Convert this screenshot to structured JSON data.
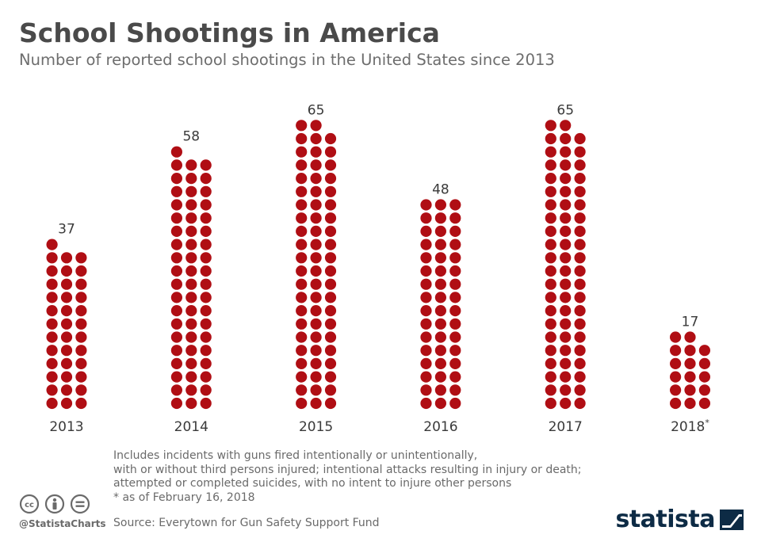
{
  "header": {
    "title": "School Shootings in America",
    "subtitle": "Number of reported school shootings in the United States since 2013"
  },
  "chart_data": {
    "type": "bar",
    "style": "dot-stack",
    "dots_per_row": 3,
    "title": "School Shootings in America",
    "subtitle": "Number of reported school shootings in the United States since 2013",
    "categories": [
      "2013",
      "2014",
      "2015",
      "2016",
      "2017",
      "2018"
    ],
    "category_marks": [
      "",
      "",
      "",
      "",
      "",
      "*"
    ],
    "values": [
      37,
      58,
      65,
      48,
      65,
      17
    ],
    "xlabel": "",
    "ylabel": "",
    "grid": false,
    "dot_color": "#b00e14"
  },
  "notes": [
    "Includes incidents with guns fired intentionally or unintentionally,",
    "with or without third persons injured; intentional attacks resulting in injury or death;",
    "attempted or completed suicides, with no intent to injure other persons",
    "* as of February 16, 2018"
  ],
  "footer": {
    "source": "Source: Everytown for Gun Safety Support Fund",
    "handle": "@StatistaCharts",
    "logo_text": "statista",
    "icons": [
      "cc-icon",
      "by-icon",
      "nd-icon"
    ]
  },
  "colors": {
    "dot": "#b00e14",
    "title": "#4a4a4a",
    "subtitle": "#6d6d6d",
    "logo": "#0d2b45"
  }
}
